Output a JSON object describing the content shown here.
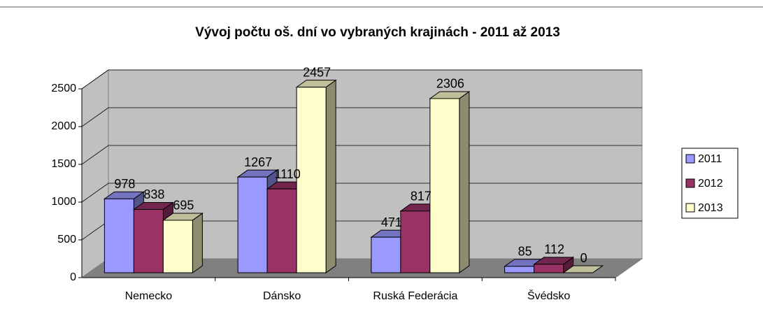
{
  "chart_data": {
    "type": "bar3d",
    "title": "Vývoj počtu oš. dní vo vybraných krajinách - 2011 až 2013",
    "categories": [
      "Nemecko",
      "Dánsko",
      "Ruská Federácia",
      "Švédsko"
    ],
    "series": [
      {
        "name": "2011",
        "color": "#9999ff",
        "values": [
          978,
          1267,
          471,
          85
        ]
      },
      {
        "name": "2012",
        "color": "#993366",
        "values": [
          838,
          1110,
          817,
          112
        ]
      },
      {
        "name": "2013",
        "color": "#ffffcc",
        "values": [
          695,
          2457,
          2306,
          0
        ]
      }
    ],
    "ylim": [
      0,
      2500
    ],
    "yticks": [
      0,
      500,
      1000,
      1500,
      2000,
      2500
    ],
    "grid": true,
    "legend": "right"
  }
}
